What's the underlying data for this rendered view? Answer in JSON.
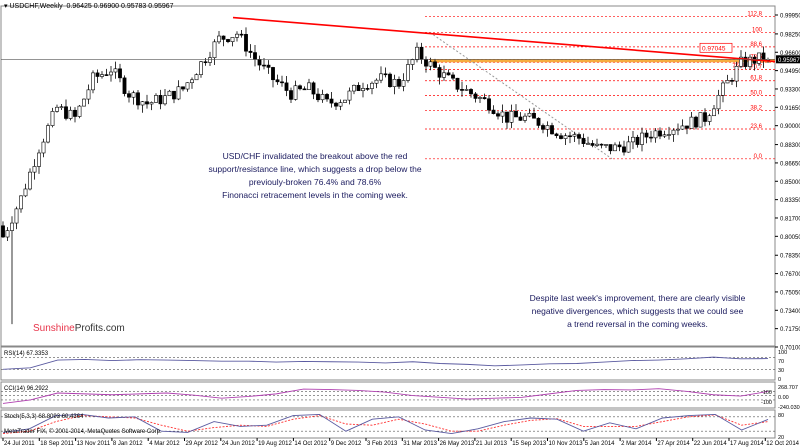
{
  "header": {
    "symbol_label": "USDCHF,Weekly",
    "ohlc": "0.96425 0.96900 0.95783 0.95967"
  },
  "brand": {
    "part1": "Sunshine",
    "part2": "Profits.com",
    "part1_color": "#e8344a"
  },
  "copyright": "MetaTrader FIX, © 2001-2014, MetaQuotes Software Corp.",
  "annotations": {
    "left": [
      "USD/CHF invalidated the breakout above the red",
      "support/resistance line, which suggests a drop below the",
      "previouly-broken 76.4% and 78.6%",
      "Finonacci retracement levels in the coming week."
    ],
    "right": [
      "Despite last week's improvement, there are clearly visible",
      "negative divergences, which suggests that we could see",
      "a trend reversal in the coming weeks."
    ]
  },
  "chart_data": {
    "type": "candlestick",
    "title": "USDCHF,Weekly",
    "last_price": 0.95967,
    "marked_price": "0.97045",
    "ylim": [
      0.701,
      0.9995
    ],
    "y_ticks": [
      "0.99950",
      "0.98250",
      "0.96600",
      "0.94950",
      "0.93300",
      "0.91650",
      "0.90000",
      "0.88300",
      "0.86650",
      "0.85000",
      "0.83350",
      "0.81700",
      "0.80050",
      "0.78350",
      "0.76700",
      "0.75050",
      "0.73400",
      "0.71750",
      "0.70100"
    ],
    "x_ticks": [
      "24 Jul 2011",
      "18 Sep 2011",
      "13 Nov 2011",
      "8 Jan 2012",
      "4 Mar 2012",
      "29 Apr 2012",
      "24 Jun 2012",
      "19 Aug 2012",
      "14 Oct 2012",
      "9 Dec 2012",
      "3 Feb 2013",
      "31 Mar 2013",
      "26 May 2013",
      "21 Jul 2013",
      "15 Sep 2013",
      "10 Nov 2013",
      "5 Jan 2014",
      "2 Mar 2014",
      "27 Apr 2014",
      "22 Jun 2014",
      "17 Aug 2014",
      "12 Oct 2014"
    ],
    "approx_closes_every_4_weeks": [
      0.8,
      0.835,
      0.88,
      0.916,
      0.907,
      0.942,
      0.951,
      0.929,
      0.92,
      0.925,
      0.933,
      0.956,
      0.978,
      0.983,
      0.96,
      0.942,
      0.929,
      0.933,
      0.92,
      0.925,
      0.938,
      0.942,
      0.938,
      0.965,
      0.951,
      0.938,
      0.929,
      0.92,
      0.907,
      0.907,
      0.902,
      0.893,
      0.889,
      0.88,
      0.88,
      0.884,
      0.893,
      0.898,
      0.902,
      0.907,
      0.933,
      0.956,
      0.96
    ],
    "fibonacci": {
      "low": 0.8702,
      "high": 0.9838,
      "levels": [
        "0.0",
        "23.6",
        "38.2",
        "50.0",
        "61.8",
        "70.7",
        "76.4",
        "78.6",
        "88.6",
        "100",
        "112.8"
      ],
      "color": "#ff0000"
    },
    "resistance_line": {
      "from_date": "24 Jun 2012",
      "from_price": 0.9972,
      "to_price": 0.9577,
      "color": "#ff0000"
    },
    "indicators": [
      {
        "name": "RSI(14) 67.3353",
        "ticks": [
          "100",
          "70",
          "30",
          "0"
        ],
        "range": [
          0,
          100
        ],
        "levels": [
          70,
          30
        ],
        "color": "#5a5aa0",
        "values": [
          30,
          35,
          62,
          64,
          60,
          63,
          62,
          60,
          58,
          58,
          55,
          57,
          56,
          55,
          52,
          56,
          50,
          47,
          42,
          45,
          49,
          50,
          55,
          60,
          62,
          66,
          72,
          66,
          67
        ]
      },
      {
        "name": "CCI(14) 96.2922",
        "ticks": [
          "268.707",
          "100",
          "0.00",
          "-100",
          "-240.0308"
        ],
        "range": [
          -240,
          268
        ],
        "levels": [
          100,
          0,
          -100
        ],
        "color": "#b040b0",
        "values": [
          -180,
          -100,
          60,
          40,
          20,
          40,
          60,
          10,
          -60,
          -20,
          40,
          150,
          140,
          120,
          80,
          0,
          -40,
          -80,
          -60,
          -40,
          40,
          120,
          140,
          130,
          160,
          100,
          20,
          -10,
          96
        ]
      },
      {
        "name": "Stoch(5,3,3) 68.8093 60.4364",
        "ticks": [
          "80",
          "20"
        ],
        "range": [
          0,
          100
        ],
        "levels": [
          80,
          20
        ],
        "color": "#5a5aa0",
        "signal_color": "#ff3030",
        "values": [
          15,
          30,
          85,
          90,
          75,
          80,
          20,
          15,
          60,
          40,
          45,
          85,
          90,
          20,
          70,
          80,
          25,
          10,
          30,
          60,
          75,
          70,
          20,
          55,
          30,
          75,
          85,
          90,
          25,
          69
        ],
        "signal": [
          10,
          20,
          60,
          85,
          80,
          75,
          45,
          20,
          35,
          45,
          40,
          70,
          85,
          50,
          45,
          70,
          50,
          20,
          20,
          45,
          65,
          72,
          40,
          40,
          40,
          60,
          80,
          88,
          45,
          60
        ]
      }
    ]
  }
}
